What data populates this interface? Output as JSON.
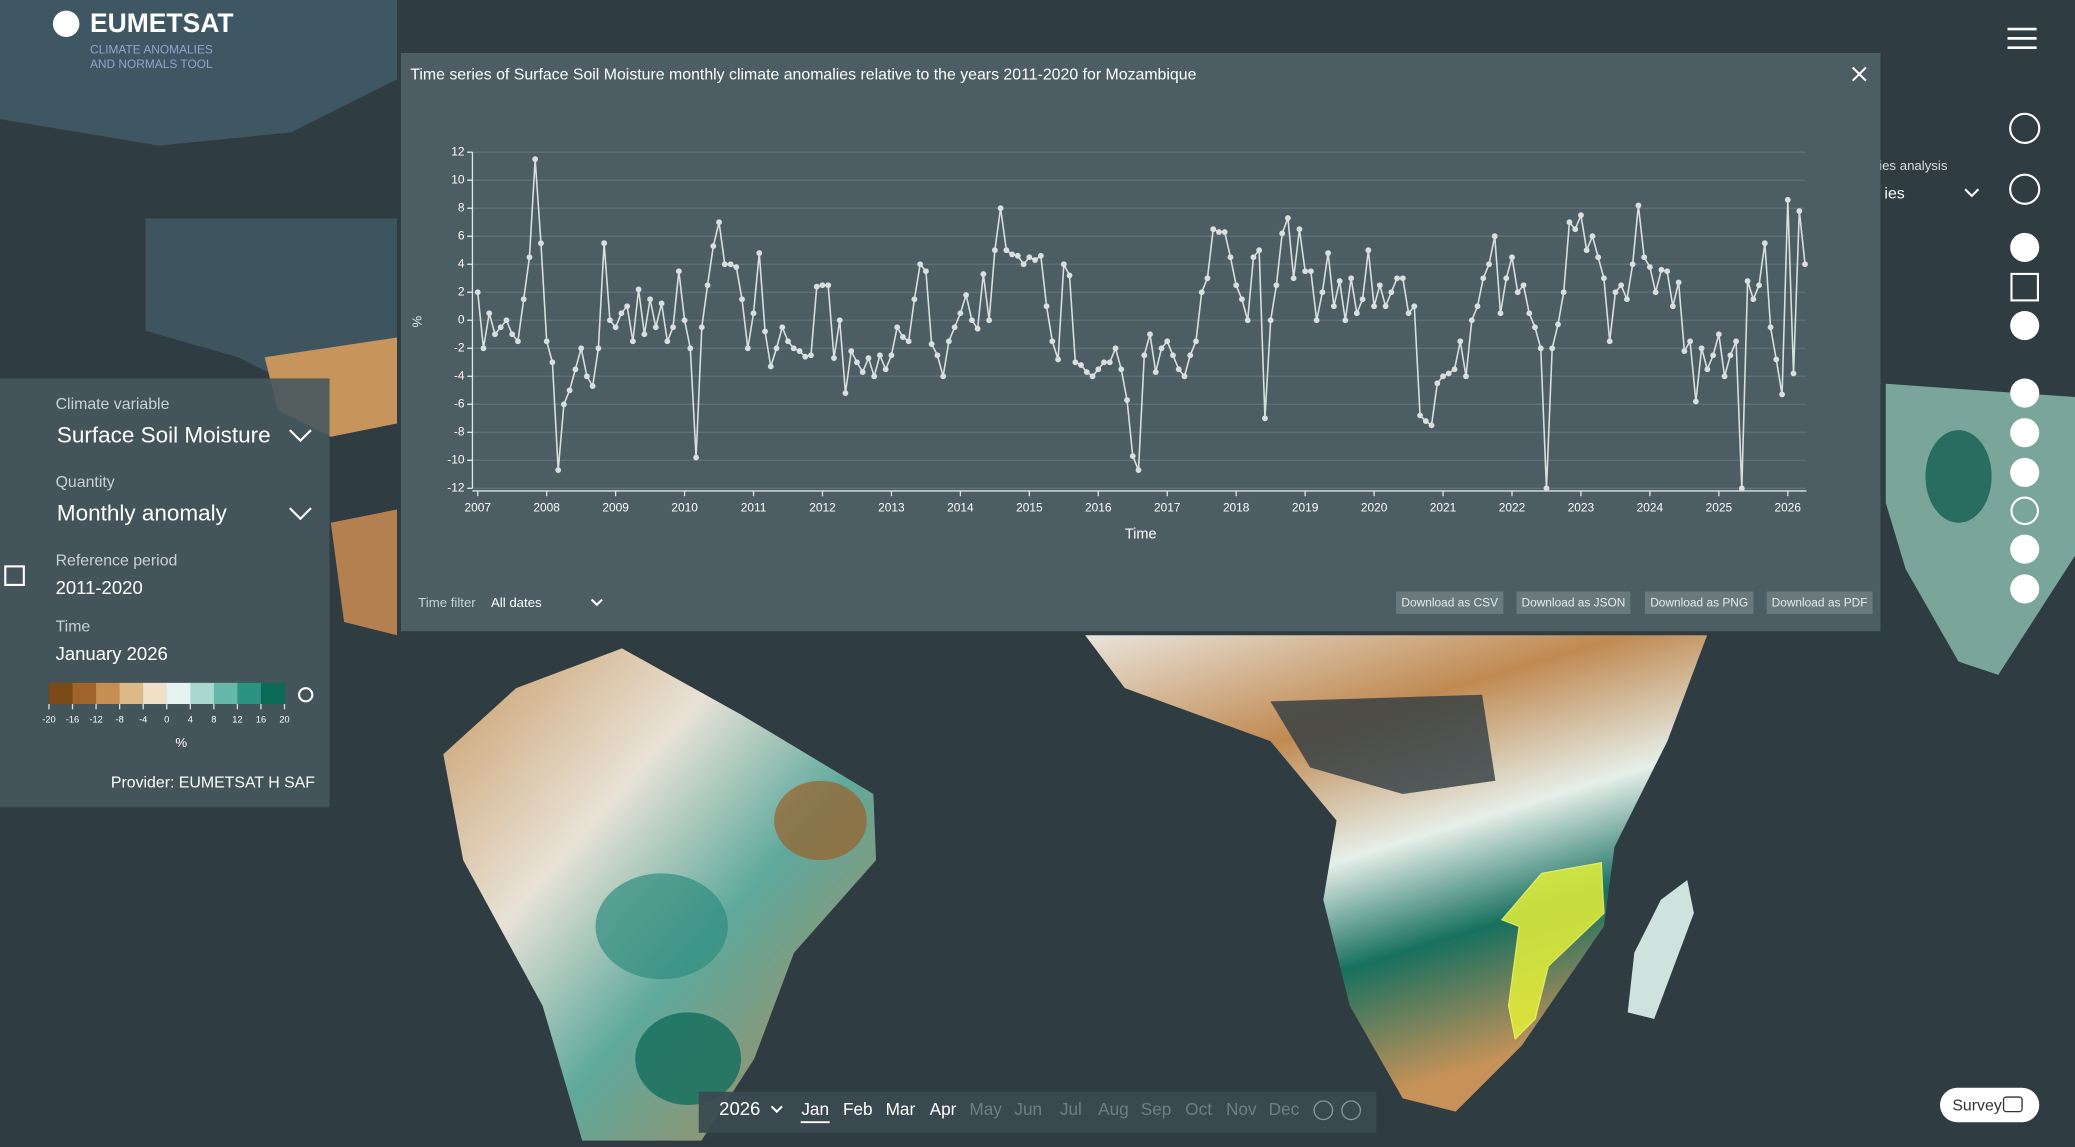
{
  "header": {
    "logo": "EUMETSAT",
    "subtitle_line1": "CLIMATE ANOMALIES",
    "subtitle_line2": "AND NORMALS TOOL"
  },
  "side_panel": {
    "climate_variable_label": "Climate variable",
    "climate_variable": "Surface Soil Moisture",
    "quantity_label": "Quantity",
    "quantity": "Monthly anomaly",
    "reference_period_label": "Reference period",
    "reference_period": "2011-2020",
    "time_label": "Time",
    "time": "January 2026",
    "legend": {
      "colors": [
        "#7b4a16",
        "#a0642a",
        "#c58f52",
        "#ddb988",
        "#f0e0c8",
        "#e4f2f0",
        "#a8d8d0",
        "#66b8aa",
        "#2c9282",
        "#0b6a58"
      ],
      "ticks": [
        -20,
        -16,
        -12,
        -8,
        -4,
        0,
        4,
        8,
        12,
        16,
        20
      ],
      "unit": "%"
    },
    "provider": "Provider: EUMETSAT H SAF"
  },
  "chart_data": {
    "type": "line",
    "title": "Time series of Surface Soil Moisture monthly climate anomalies relative to the years 2011-2020 for Mozambique",
    "x_label": "Time",
    "y_label": "%",
    "color": "#d9dedf",
    "grid": true,
    "xlim": [
      2007,
      2026.25
    ],
    "ylim": [
      -12,
      12
    ],
    "xticks": [
      2007,
      2008,
      2009,
      2010,
      2011,
      2012,
      2013,
      2014,
      2015,
      2016,
      2017,
      2018,
      2019,
      2020,
      2021,
      2022,
      2023,
      2024,
      2025,
      2026
    ],
    "yticks": [
      -12,
      -10,
      -8,
      -6,
      -4,
      -2,
      0,
      2,
      4,
      6,
      8,
      10,
      12
    ],
    "x": [
      2007,
      2007.083,
      2007.167,
      2007.25,
      2007.333,
      2007.417,
      2007.5,
      2007.583,
      2007.667,
      2007.75,
      2007.833,
      2007.917,
      2008,
      2008.083,
      2008.167,
      2008.25,
      2008.333,
      2008.417,
      2008.5,
      2008.583,
      2008.667,
      2008.75,
      2008.833,
      2008.917,
      2009,
      2009.083,
      2009.167,
      2009.25,
      2009.333,
      2009.417,
      2009.5,
      2009.583,
      2009.667,
      2009.75,
      2009.833,
      2009.917,
      2010,
      2010.083,
      2010.167,
      2010.25,
      2010.333,
      2010.417,
      2010.5,
      2010.583,
      2010.667,
      2010.75,
      2010.833,
      2010.917,
      2011,
      2011.083,
      2011.167,
      2011.25,
      2011.333,
      2011.417,
      2011.5,
      2011.583,
      2011.667,
      2011.75,
      2011.833,
      2011.917,
      2012,
      2012.083,
      2012.167,
      2012.25,
      2012.333,
      2012.417,
      2012.5,
      2012.583,
      2012.667,
      2012.75,
      2012.833,
      2012.917,
      2013,
      2013.083,
      2013.167,
      2013.25,
      2013.333,
      2013.417,
      2013.5,
      2013.583,
      2013.667,
      2013.75,
      2013.833,
      2013.917,
      2014,
      2014.083,
      2014.167,
      2014.25,
      2014.333,
      2014.417,
      2014.5,
      2014.583,
      2014.667,
      2014.75,
      2014.833,
      2014.917,
      2015,
      2015.083,
      2015.167,
      2015.25,
      2015.333,
      2015.417,
      2015.5,
      2015.583,
      2015.667,
      2015.75,
      2015.833,
      2015.917,
      2016,
      2016.083,
      2016.167,
      2016.25,
      2016.333,
      2016.417,
      2016.5,
      2016.583,
      2016.667,
      2016.75,
      2016.833,
      2016.917,
      2017,
      2017.083,
      2017.167,
      2017.25,
      2017.333,
      2017.417,
      2017.5,
      2017.583,
      2017.667,
      2017.75,
      2017.833,
      2017.917,
      2018,
      2018.083,
      2018.167,
      2018.25,
      2018.333,
      2018.417,
      2018.5,
      2018.583,
      2018.667,
      2018.75,
      2018.833,
      2018.917,
      2019,
      2019.083,
      2019.167,
      2019.25,
      2019.333,
      2019.417,
      2019.5,
      2019.583,
      2019.667,
      2019.75,
      2019.833,
      2019.917,
      2020,
      2020.083,
      2020.167,
      2020.25,
      2020.333,
      2020.417,
      2020.5,
      2020.583,
      2020.667,
      2020.75,
      2020.833,
      2020.917,
      2021,
      2021.083,
      2021.167,
      2021.25,
      2021.333,
      2021.417,
      2021.5,
      2021.583,
      2021.667,
      2021.75,
      2021.833,
      2021.917,
      2022,
      2022.083,
      2022.167,
      2022.25,
      2022.333,
      2022.417,
      2022.5,
      2022.583,
      2022.667,
      2022.75,
      2022.833,
      2022.917,
      2023,
      2023.083,
      2023.167,
      2023.25,
      2023.333,
      2023.417,
      2023.5,
      2023.583,
      2023.667,
      2023.75,
      2023.833,
      2023.917,
      2024,
      2024.083,
      2024.167,
      2024.25,
      2024.333,
      2024.417,
      2024.5,
      2024.583,
      2024.667,
      2024.75,
      2024.833,
      2024.917,
      2025,
      2025.083,
      2025.167,
      2025.25,
      2025.333,
      2025.417,
      2025.5,
      2025.583,
      2025.667,
      2025.75,
      2025.833,
      2025.917,
      2026,
      2026.083,
      2026.167,
      2026.25
    ],
    "values": [
      2,
      -2,
      0.5,
      -1,
      -0.5,
      0,
      -1,
      -1.5,
      1.5,
      4.5,
      11.5,
      5.5,
      -1.5,
      -3,
      -10.7,
      -6,
      -5,
      -3.5,
      -2,
      -4,
      -4.7,
      -2,
      5.5,
      0,
      -0.5,
      0.5,
      1,
      -1.5,
      2.2,
      -1,
      1.5,
      -0.5,
      1.2,
      -1.5,
      -0.5,
      3.5,
      0,
      -2,
      -9.8,
      -0.5,
      2.5,
      5.3,
      7,
      4,
      4,
      3.8,
      1.5,
      -2,
      0.5,
      4.8,
      -0.8,
      -3.3,
      -2,
      -0.5,
      -1.5,
      -2,
      -2.2,
      -2.6,
      -2.5,
      2.4,
      2.5,
      2.5,
      -2.7,
      0,
      -5.2,
      -2.2,
      -3,
      -3.7,
      -2.7,
      -4,
      -2.5,
      -3.5,
      -2.5,
      -0.5,
      -1.2,
      -1.5,
      1.5,
      4,
      3.5,
      -1.7,
      -2.5,
      -4,
      -1.5,
      -0.5,
      0.5,
      1.8,
      0,
      -0.6,
      3.3,
      0,
      5,
      8,
      5,
      4.7,
      4.6,
      4,
      4.5,
      4.3,
      4.6,
      1,
      -1.5,
      -2.8,
      4,
      3.2,
      -3,
      -3.2,
      -3.7,
      -4,
      -3.5,
      -3,
      -3,
      -2,
      -3.5,
      -5.7,
      -9.7,
      -10.7,
      -2.5,
      -1,
      -3.7,
      -2,
      -1.5,
      -2.5,
      -3.5,
      -4,
      -2.5,
      -1.5,
      2,
      3,
      6.5,
      6.3,
      6.3,
      4.5,
      2.5,
      1.5,
      0,
      4.5,
      5,
      -7,
      0,
      2.5,
      6.2,
      7.3,
      3,
      6.5,
      3.5,
      3.5,
      0,
      2,
      4.8,
      1,
      2.8,
      0,
      3,
      0.5,
      1.5,
      5,
      1,
      2.5,
      1,
      2,
      3,
      3,
      0.5,
      1,
      -6.8,
      -7.2,
      -7.5,
      -4.5,
      -4,
      -3.8,
      -3.5,
      -1.5,
      -4,
      0,
      1,
      3,
      4,
      6,
      0.5,
      3,
      4.5,
      2,
      2.5,
      0.5,
      -0.5,
      -2,
      -12,
      -2,
      -0.3,
      2,
      7,
      6.5,
      7.5,
      5,
      6,
      4.5,
      3,
      -1.5,
      2,
      2.5,
      1.5,
      4,
      8.2,
      4.5,
      3.8,
      2,
      3.6,
      3.5,
      1,
      2.7,
      -2.2,
      -1.5,
      -5.8,
      -2,
      -3.5,
      -2.5,
      -1,
      -4,
      -2.5,
      -1.5,
      -12,
      2.8,
      1.5,
      2.5,
      5.5,
      -0.5,
      -2.8,
      -5.3,
      8.6,
      -3.8,
      7.8,
      4
    ]
  },
  "chart_panel": {
    "time_filter_label": "Time filter",
    "time_filter": "All dates",
    "buttons": [
      "Download as CSV",
      "Download as JSON",
      "Download as PNG",
      "Download as PDF"
    ]
  },
  "right_panel": {
    "analysis_label": "ies analysis",
    "analysis_value": "ies"
  },
  "timeline": {
    "year": "2026",
    "months": [
      "Jan",
      "Feb",
      "Mar",
      "Apr",
      "May",
      "Jun",
      "Jul",
      "Aug",
      "Sep",
      "Oct",
      "Nov",
      "Dec"
    ],
    "selected_index": 0,
    "last_available_index": 3
  },
  "survey": "Survey"
}
